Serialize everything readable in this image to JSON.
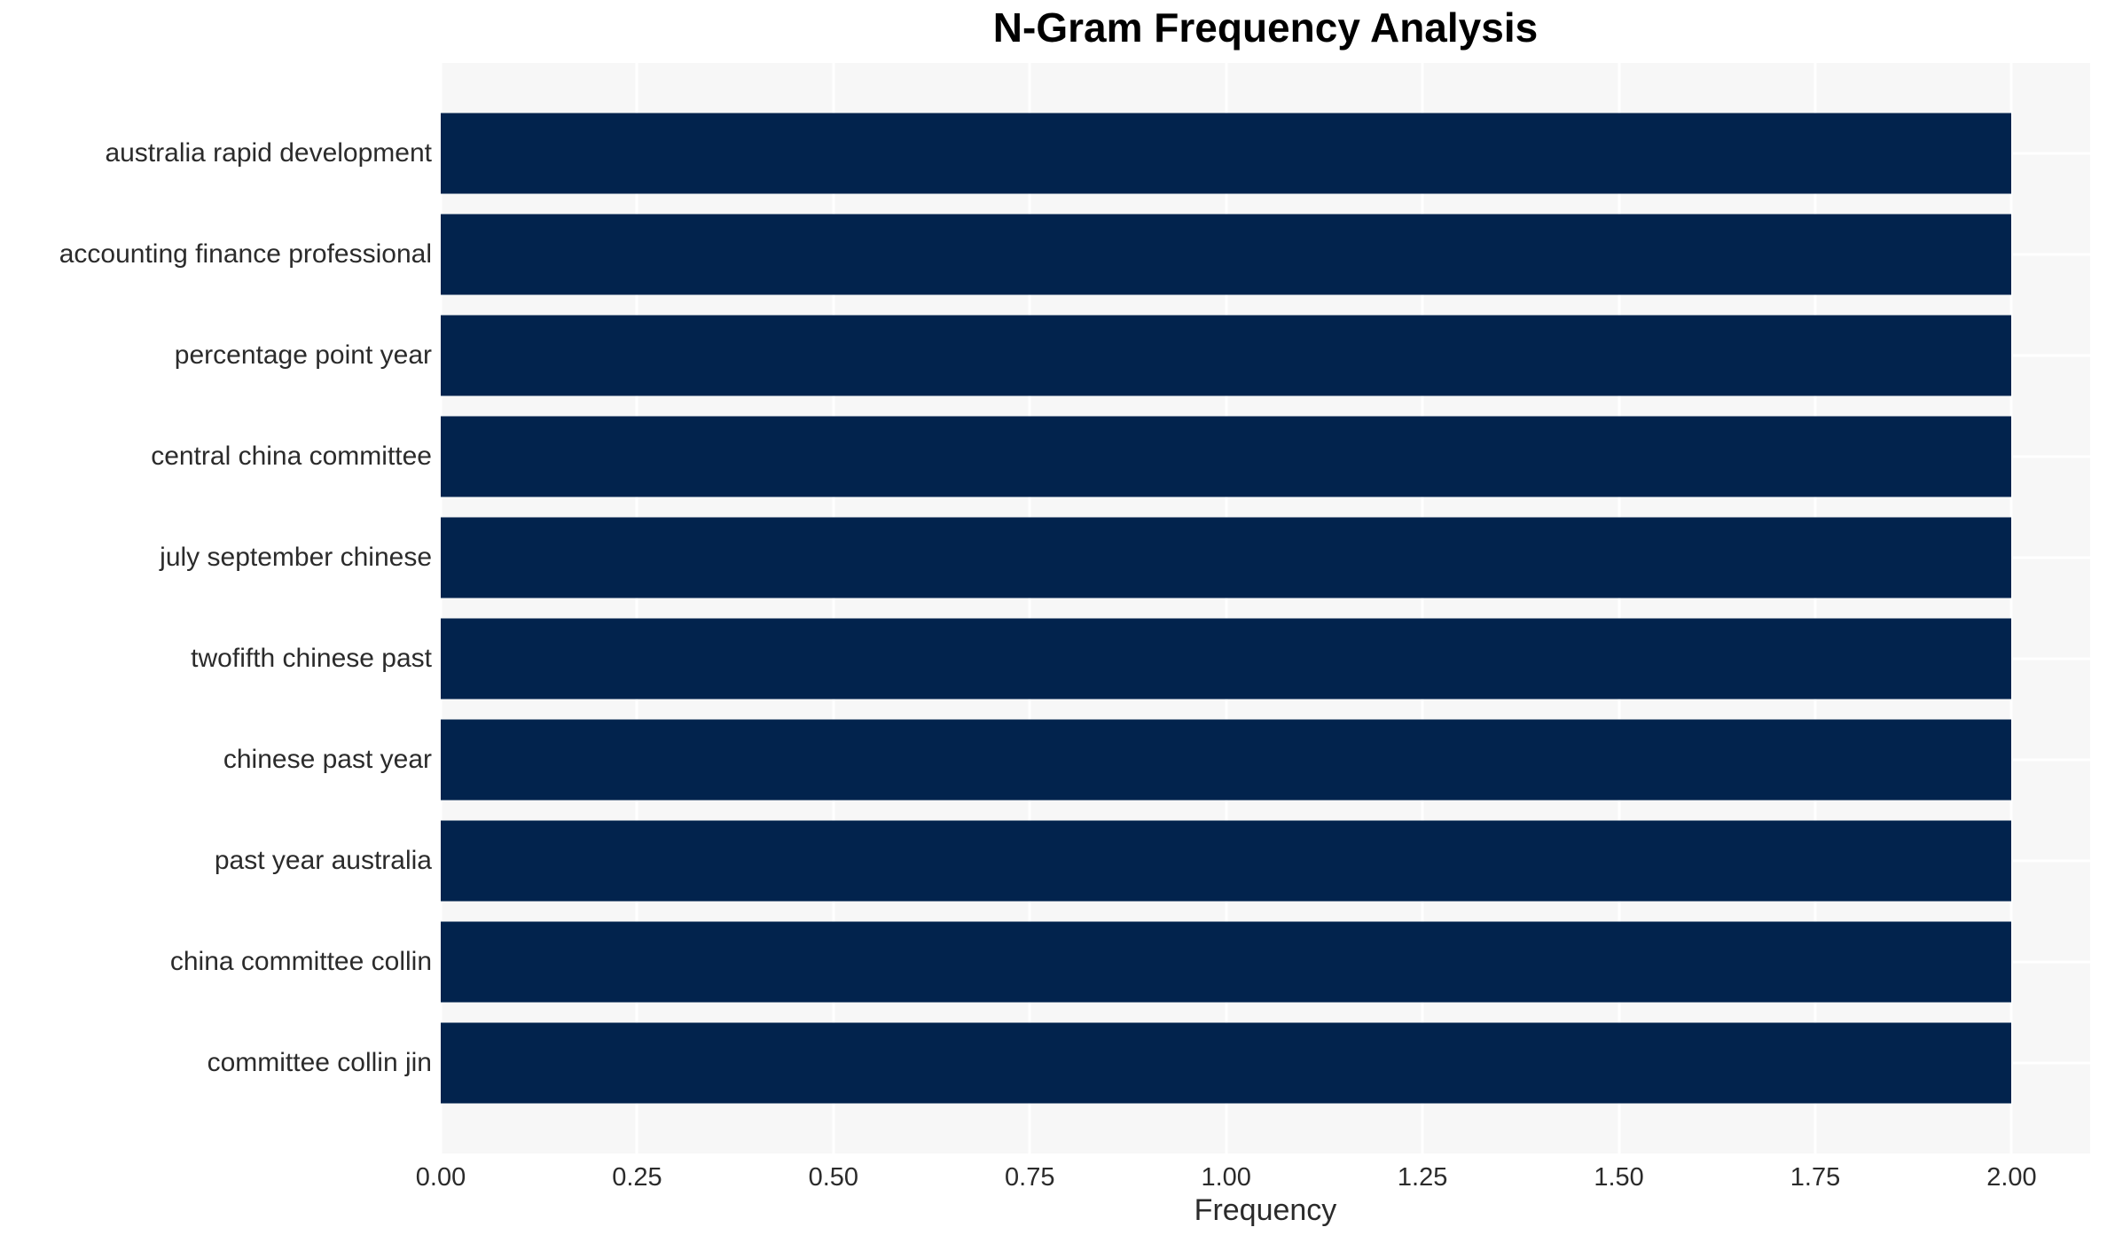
{
  "chart_data": {
    "type": "bar",
    "orientation": "horizontal",
    "title": "N-Gram Frequency Analysis",
    "xlabel": "Frequency",
    "ylabel": "",
    "categories": [
      "australia rapid development",
      "accounting finance professional",
      "percentage point year",
      "central china committee",
      "july september chinese",
      "twofifth chinese past",
      "chinese past year",
      "past year australia",
      "china committee collin",
      "committee collin jin"
    ],
    "values": [
      2.0,
      2.0,
      2.0,
      2.0,
      2.0,
      2.0,
      2.0,
      2.0,
      2.0,
      2.0
    ],
    "xlim": [
      0,
      2.1
    ],
    "xticks": [
      {
        "value": 0.0,
        "label": "0.00"
      },
      {
        "value": 0.25,
        "label": "0.25"
      },
      {
        "value": 0.5,
        "label": "0.50"
      },
      {
        "value": 0.75,
        "label": "0.75"
      },
      {
        "value": 1.0,
        "label": "1.00"
      },
      {
        "value": 1.25,
        "label": "1.25"
      },
      {
        "value": 1.5,
        "label": "1.50"
      },
      {
        "value": 1.75,
        "label": "1.75"
      },
      {
        "value": 2.0,
        "label": "2.00"
      }
    ],
    "grid": true,
    "legend": false
  },
  "style": {
    "bar_color": "#02234d",
    "plot_background": "#f7f7f7",
    "grid_color": "#ffffff",
    "text_color": "#2b2b2b",
    "title_color": "#000000",
    "figure_background": "#ffffff"
  }
}
